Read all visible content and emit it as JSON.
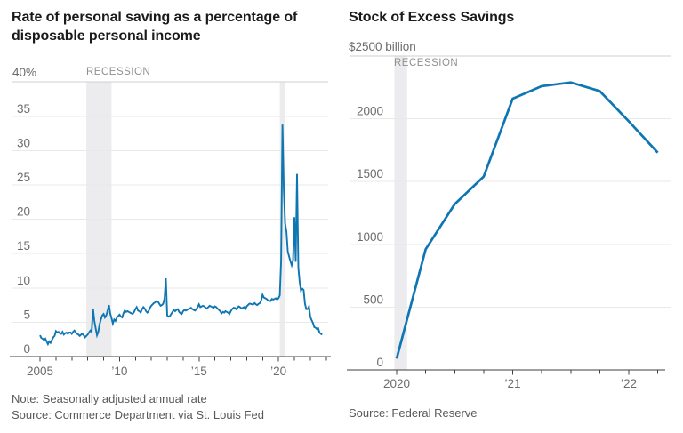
{
  "colors": {
    "line": "#0e76b2",
    "grid": "#e9e9e9",
    "grid_top": "#cfcfcf",
    "axis": "#3f3f3f",
    "recession_band": "#ececee",
    "title_text": "#1a1a1a",
    "tick_text": "#6b6b6b",
    "recession_text": "#909090",
    "note_text": "#595959"
  },
  "chart_data": [
    {
      "type": "line",
      "title": "Rate of personal saving as a percentage of disposable personal income",
      "y_top_label": "40%",
      "recession_label": "RECESSION",
      "note": "Note: Seasonally adjusted annual rate",
      "source": "Source: Commerce Department via St. Louis Fed",
      "ylim": [
        0,
        40
      ],
      "y_ticks": [
        0,
        5,
        10,
        15,
        20,
        25,
        30,
        35
      ],
      "x_tick_labels": [
        [
          2005,
          "2005"
        ],
        [
          2010,
          "’10"
        ],
        [
          2015,
          "’15"
        ],
        [
          2020,
          "’20"
        ]
      ],
      "x_minor_ticks": {
        "start": 2005,
        "end": 2023,
        "step": 1
      },
      "recessions": [
        [
          2007.917,
          2009.5
        ],
        [
          2020.08,
          2020.42
        ]
      ],
      "grid": true,
      "series": [
        {
          "name": "Personal saving rate (%)",
          "freq": "monthly",
          "x_start": 2005.0,
          "x_step": 0.083333,
          "values": [
            3.1,
            2.7,
            2.6,
            2.4,
            2.6,
            2.2,
            1.8,
            2.2,
            2.0,
            2.4,
            2.8,
            3.0,
            3.7,
            3.5,
            3.6,
            3.4,
            3.3,
            3.6,
            3.2,
            3.4,
            3.5,
            3.3,
            3.5,
            3.5,
            3.3,
            3.6,
            3.8,
            3.5,
            3.3,
            3.2,
            3.0,
            3.2,
            3.3,
            3.1,
            2.8,
            3.0,
            3.2,
            3.5,
            3.8,
            3.6,
            7.0,
            5.2,
            4.1,
            3.1,
            3.6,
            4.7,
            5.4,
            6.0,
            6.2,
            5.7,
            6.0,
            6.7,
            7.5,
            6.3,
            5.6,
            4.8,
            5.4,
            5.2,
            5.7,
            5.9,
            6.1,
            5.8,
            5.7,
            6.3,
            6.7,
            6.5,
            6.6,
            6.5,
            6.4,
            6.3,
            6.2,
            6.5,
            6.9,
            7.2,
            6.7,
            6.6,
            6.4,
            6.9,
            7.2,
            7.0,
            6.6,
            6.4,
            6.6,
            7.1,
            7.4,
            7.6,
            7.8,
            7.9,
            8.1,
            8.0,
            7.7,
            7.4,
            7.5,
            7.7,
            8.5,
            11.4,
            6.0,
            5.8,
            5.9,
            6.2,
            6.5,
            6.8,
            6.6,
            6.8,
            6.9,
            6.5,
            6.3,
            6.2,
            6.6,
            6.8,
            6.7,
            6.8,
            6.9,
            7.0,
            7.1,
            6.9,
            6.8,
            6.7,
            6.9,
            7.2,
            7.6,
            7.2,
            7.3,
            7.4,
            7.3,
            7.1,
            7.0,
            7.2,
            7.4,
            7.3,
            7.2,
            7.1,
            7.3,
            7.2,
            7.0,
            6.8,
            6.6,
            6.3,
            6.5,
            6.4,
            6.6,
            6.5,
            6.4,
            6.2,
            6.6,
            6.9,
            7.1,
            7.1,
            6.9,
            7.1,
            7.3,
            7.2,
            7.0,
            7.1,
            7.2,
            6.9,
            7.3,
            7.5,
            7.7,
            7.7,
            7.6,
            7.6,
            7.8,
            7.6,
            7.5,
            7.7,
            7.8,
            8.2,
            9.0,
            8.6,
            8.5,
            8.4,
            8.2,
            8.1,
            8.1,
            8.4,
            8.3,
            8.4,
            8.5,
            8.3,
            8.5,
            8.9,
            14.0,
            33.8,
            24.5,
            19.4,
            18.2,
            15.3,
            14.6,
            13.9,
            13.3,
            14.0,
            20.3,
            13.8,
            26.6,
            12.9,
            10.8,
            9.6,
            9.9,
            9.7,
            7.7,
            6.9,
            6.9,
            7.3,
            5.8,
            5.3,
            4.9,
            4.3,
            4.2,
            4.0,
            4.1,
            3.5,
            3.3,
            3.2
          ]
        }
      ]
    },
    {
      "type": "line",
      "title": "Stock of Excess Savings",
      "y_top_label": "$2500 billion",
      "recession_label": "RECESSION",
      "source": "Source: Federal Reserve",
      "ylim": [
        0,
        2500
      ],
      "y_ticks": [
        0,
        500,
        1000,
        1500,
        2000
      ],
      "x_tick_labels": [
        [
          2020,
          "2020"
        ],
        [
          2021,
          "’21"
        ],
        [
          2022,
          "’22"
        ]
      ],
      "x_minor_ticks": {
        "start": 2020,
        "end": 2022.25,
        "step": 0.25
      },
      "recessions": [
        [
          2019.98,
          2020.09
        ]
      ],
      "grid": true,
      "series": [
        {
          "name": "Excess savings ($ billion)",
          "freq": "quarterly",
          "x": [
            2020.0,
            2020.25,
            2020.5,
            2020.75,
            2021.0,
            2021.25,
            2021.5,
            2021.75,
            2022.0,
            2022.25
          ],
          "values": [
            90,
            960,
            1320,
            1540,
            2160,
            2260,
            2290,
            2220,
            1980,
            1730
          ]
        }
      ]
    }
  ]
}
